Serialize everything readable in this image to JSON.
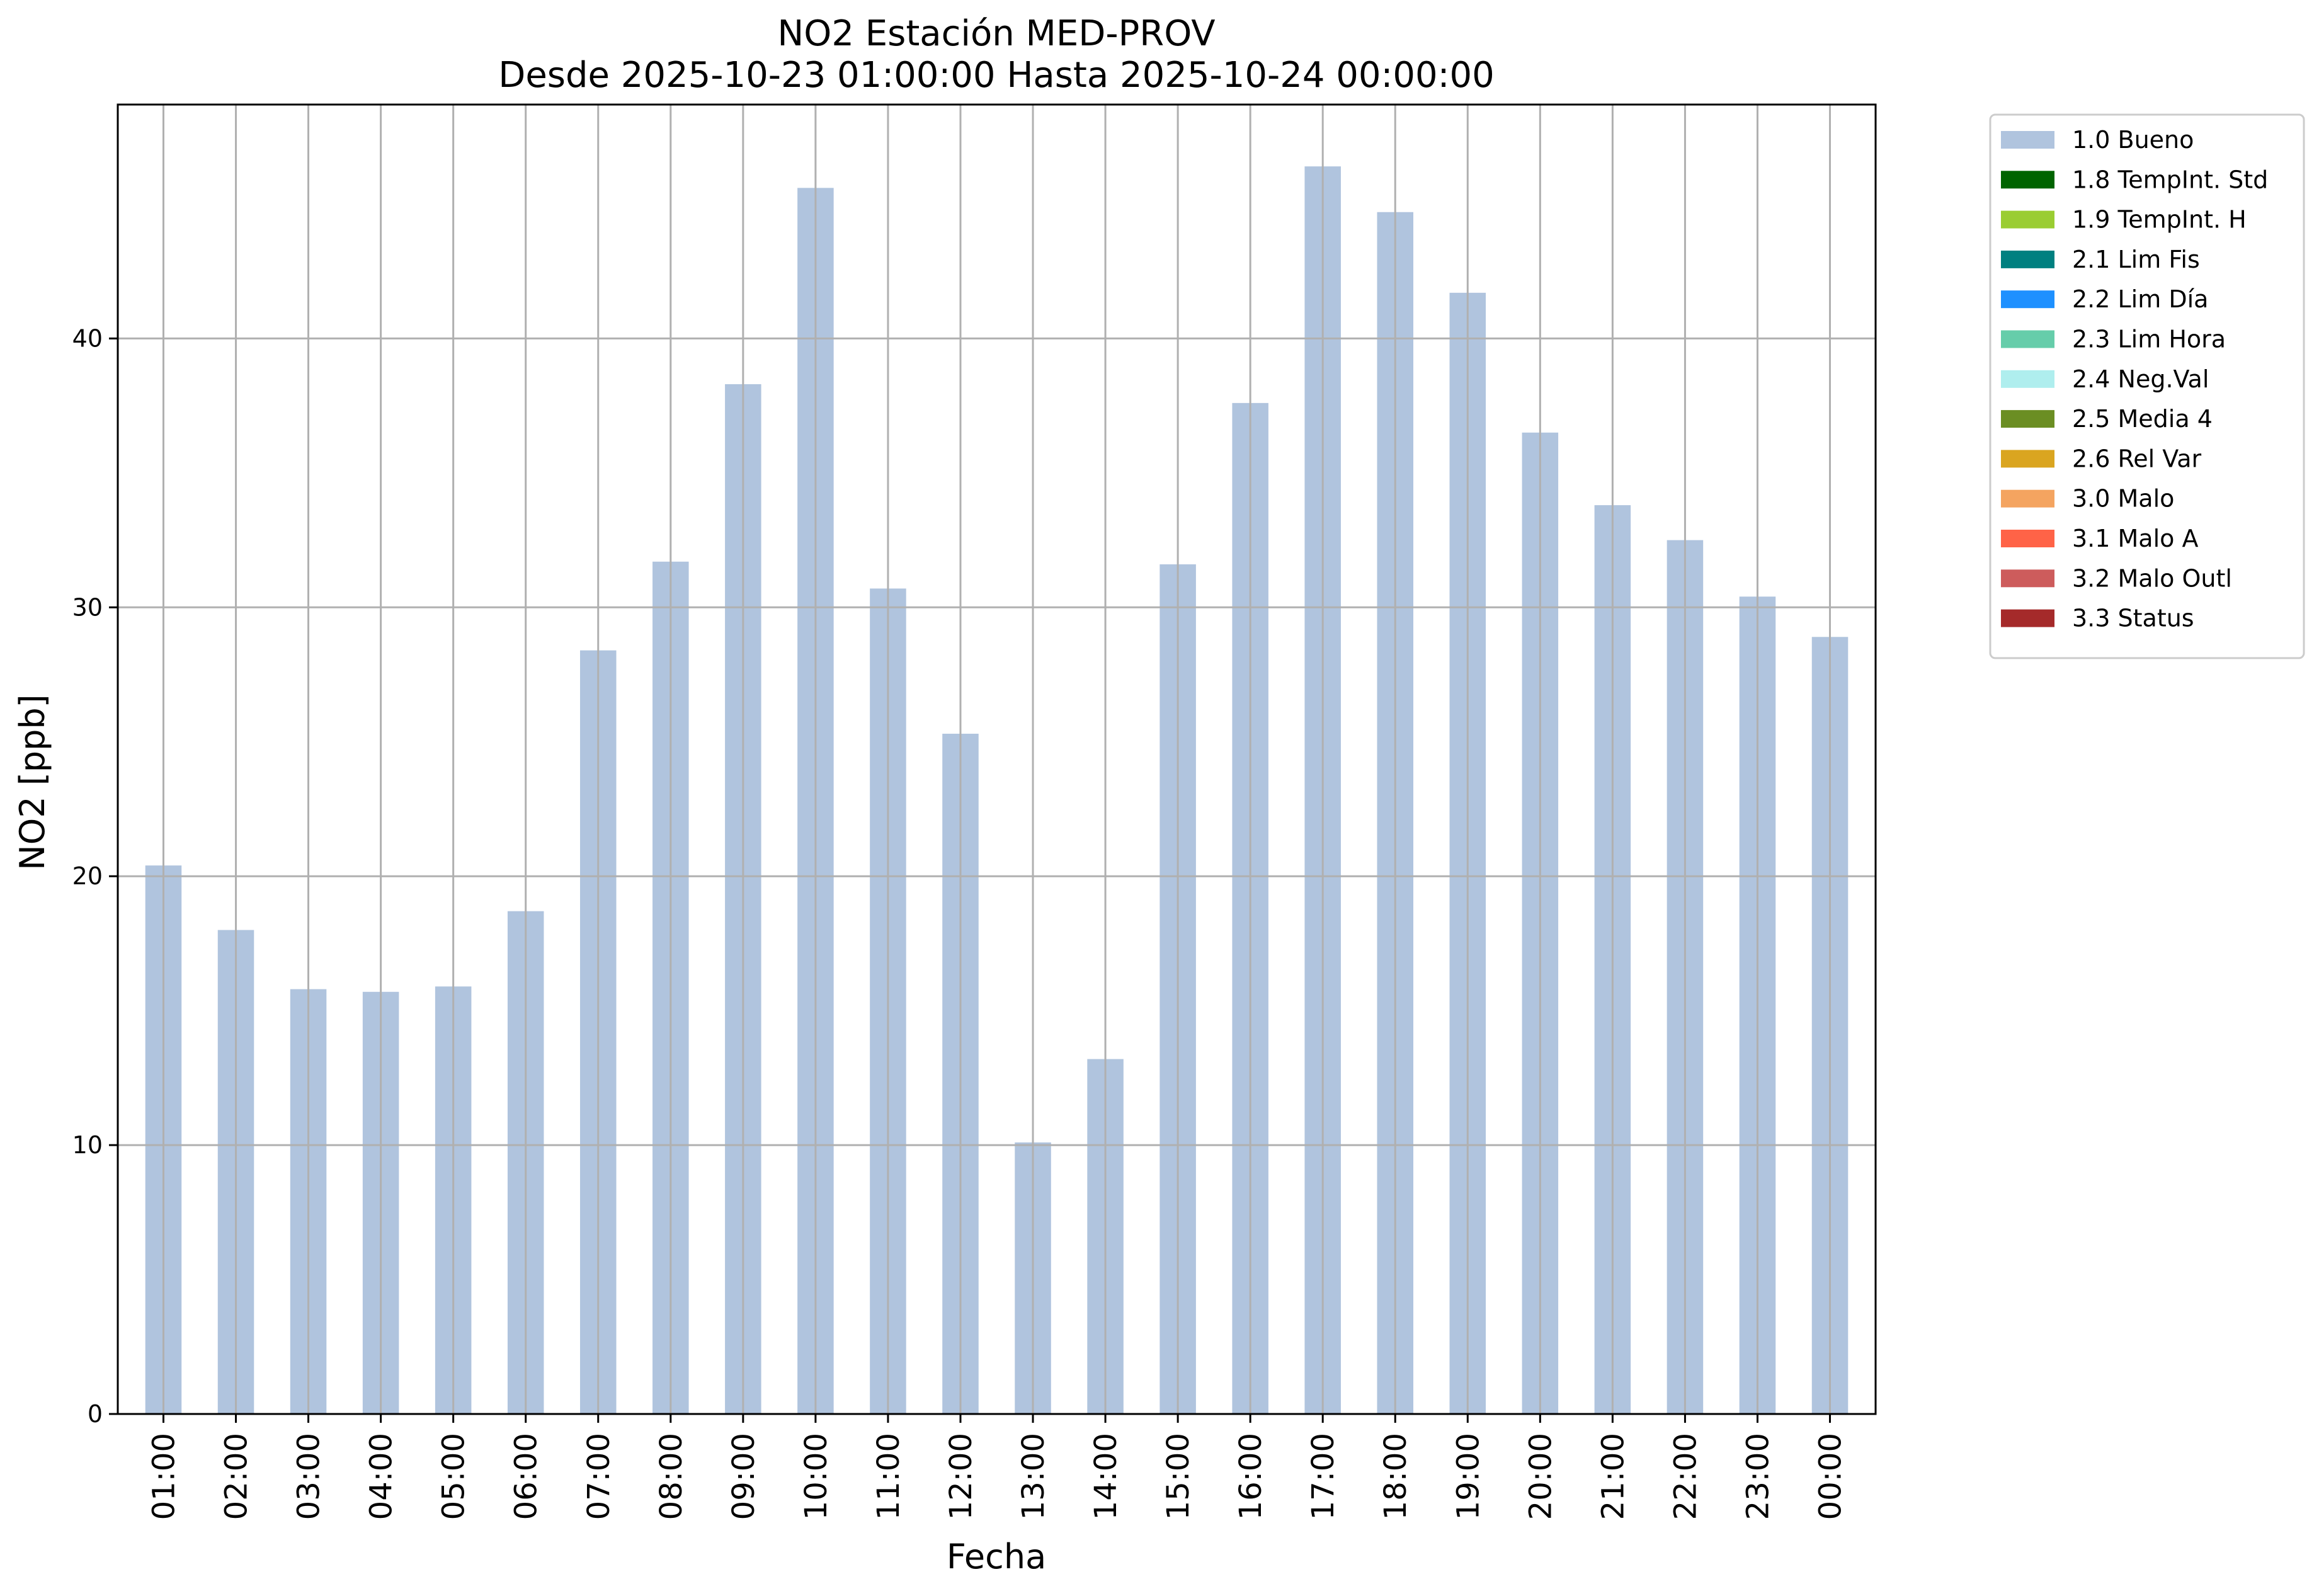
{
  "chart_data": {
    "type": "bar",
    "title": "NO2 Estación MED-PROV",
    "subtitle": "Desde 2025-10-23 01:00:00 Hasta 2025-10-24 00:00:00",
    "xlabel": "Fecha",
    "ylabel": "NO2 [ppb]",
    "ylim": [
      0,
      48.7
    ],
    "yticks": [
      0,
      10,
      20,
      30,
      40
    ],
    "grid": true,
    "legend_position": "outside-top-right",
    "categories": [
      "01:00",
      "02:00",
      "03:00",
      "04:00",
      "05:00",
      "06:00",
      "07:00",
      "08:00",
      "09:00",
      "10:00",
      "11:00",
      "12:00",
      "13:00",
      "14:00",
      "15:00",
      "16:00",
      "17:00",
      "18:00",
      "19:00",
      "20:00",
      "21:00",
      "22:00",
      "23:00",
      "00:00"
    ],
    "series": [
      {
        "name": "1.0 Bueno",
        "color": "#b0c4de",
        "values": [
          20.4,
          18.0,
          15.8,
          15.7,
          15.9,
          18.7,
          28.4,
          31.7,
          38.3,
          45.6,
          30.7,
          25.3,
          10.1,
          13.2,
          31.6,
          37.6,
          46.4,
          44.7,
          41.7,
          36.5,
          33.8,
          32.5,
          30.4,
          28.9
        ]
      }
    ],
    "legend": [
      {
        "label": "1.0 Bueno",
        "color": "#b0c4de"
      },
      {
        "label": "1.8 TempInt. Std",
        "color": "#006400"
      },
      {
        "label": "1.9 TempInt. H",
        "color": "#9acd32"
      },
      {
        "label": "2.1 Lim Fis",
        "color": "#008080"
      },
      {
        "label": "2.2 Lim Día",
        "color": "#1e90ff"
      },
      {
        "label": "2.3 Lim Hora",
        "color": "#66cdaa"
      },
      {
        "label": "2.4 Neg.Val",
        "color": "#afeeee"
      },
      {
        "label": "2.5 Media 4",
        "color": "#6b8e23"
      },
      {
        "label": "2.6 Rel Var",
        "color": "#daa520"
      },
      {
        "label": "3.0 Malo",
        "color": "#f4a460"
      },
      {
        "label": "3.1 Malo A",
        "color": "#ff6347"
      },
      {
        "label": "3.2 Malo Outl",
        "color": "#cd5c5c"
      },
      {
        "label": "3.3 Status",
        "color": "#a52a2a"
      }
    ]
  }
}
